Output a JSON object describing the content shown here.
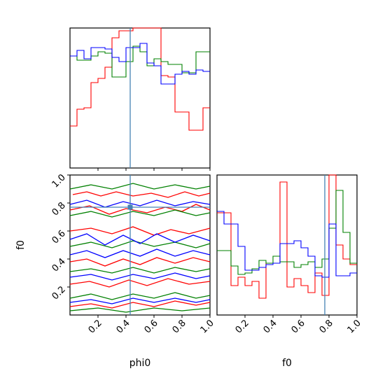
{
  "chart_data": {
    "type": "corner",
    "parameters": [
      "phi0",
      "f0"
    ],
    "truth": {
      "phi0": 0.43,
      "f0": 0.77
    },
    "truth_color": "#4682b4",
    "series": [
      {
        "color": "#ff0000"
      },
      {
        "color": "#008000"
      },
      {
        "color": "#0000ff"
      }
    ],
    "range": [
      0,
      1
    ],
    "ticks": {
      "values": [
        0.2,
        0.4,
        0.6,
        0.8,
        1.0
      ],
      "labels": [
        "0.2",
        "0.4",
        "0.6",
        "0.8",
        "1.0"
      ],
      "y_values": [
        0.2,
        0.4,
        0.6,
        0.8,
        1.0
      ],
      "y_labels": [
        "0.2",
        "0.4",
        "0.6",
        "0.8",
        "1.0"
      ]
    },
    "histograms": {
      "phi0": {
        "bins": 20,
        "ymax": 1.0,
        "series": [
          {
            "color": "#ff0000",
            "values": [
              0.3,
              0.42,
              0.43,
              0.61,
              0.64,
              0.72,
              0.93,
              0.98,
              0.98,
              1.05,
              1.02,
              1.07,
              1.09,
              0.66,
              0.65,
              0.4,
              0.4,
              0.27,
              0.27,
              0.43
            ]
          },
          {
            "color": "#008000",
            "values": [
              0.8,
              0.77,
              0.77,
              0.8,
              0.83,
              0.82,
              0.65,
              0.65,
              0.76,
              0.87,
              0.83,
              0.73,
              0.78,
              0.76,
              0.74,
              0.74,
              0.68,
              0.68,
              0.83,
              0.83
            ]
          },
          {
            "color": "#0000ff",
            "values": [
              0.8,
              0.84,
              0.78,
              0.86,
              0.86,
              0.85,
              0.79,
              0.76,
              0.86,
              0.86,
              0.89,
              0.75,
              0.73,
              0.6,
              0.6,
              0.67,
              0.69,
              0.67,
              0.7,
              0.69
            ]
          }
        ]
      },
      "f0": {
        "bins": 20,
        "ymax": 1.0,
        "series": [
          {
            "color": "#ff0000",
            "values": [
              0.73,
              0.73,
              0.21,
              0.27,
              0.21,
              0.24,
              0.12,
              0.37,
              0.37,
              0.95,
              0.2,
              0.26,
              0.21,
              0.16,
              0.3,
              0.14,
              1.04,
              0.5,
              0.4,
              0.36
            ]
          },
          {
            "color": "#008000",
            "values": [
              0.46,
              0.46,
              0.35,
              0.29,
              0.3,
              0.33,
              0.39,
              0.37,
              0.42,
              0.38,
              0.38,
              0.34,
              0.36,
              0.38,
              0.34,
              0.4,
              0.62,
              0.89,
              0.59,
              0.37
            ]
          },
          {
            "color": "#0000ff",
            "values": [
              0.74,
              0.65,
              0.65,
              0.49,
              0.32,
              0.32,
              0.34,
              0.36,
              0.37,
              0.51,
              0.51,
              0.53,
              0.48,
              0.42,
              0.28,
              0.27,
              0.65,
              0.28,
              0.28,
              0.3
            ]
          }
        ]
      }
    },
    "contours": [
      {
        "color": "#ff0000",
        "paths": [
          [
            [
              0.02,
              0.86
            ],
            [
              0.12,
              0.88
            ],
            [
              0.22,
              0.85
            ],
            [
              0.33,
              0.88
            ],
            [
              0.45,
              0.85
            ],
            [
              0.58,
              0.87
            ],
            [
              0.7,
              0.84
            ],
            [
              0.82,
              0.88
            ],
            [
              0.92,
              0.85
            ],
            [
              1.0,
              0.87
            ]
          ],
          [
            [
              0.0,
              0.75
            ],
            [
              0.14,
              0.78
            ],
            [
              0.28,
              0.72
            ],
            [
              0.4,
              0.76
            ],
            [
              0.55,
              0.73
            ],
            [
              0.68,
              0.77
            ],
            [
              0.8,
              0.74
            ],
            [
              0.9,
              0.79
            ],
            [
              1.0,
              0.75
            ]
          ],
          [
            [
              0.0,
              0.6
            ],
            [
              0.15,
              0.62
            ],
            [
              0.3,
              0.58
            ],
            [
              0.45,
              0.63
            ],
            [
              0.6,
              0.57
            ],
            [
              0.72,
              0.61
            ],
            [
              0.85,
              0.58
            ],
            [
              1.0,
              0.62
            ]
          ],
          [
            [
              0.0,
              0.38
            ],
            [
              0.12,
              0.4
            ],
            [
              0.25,
              0.35
            ],
            [
              0.38,
              0.4
            ],
            [
              0.5,
              0.36
            ],
            [
              0.62,
              0.41
            ],
            [
              0.75,
              0.37
            ],
            [
              0.88,
              0.41
            ],
            [
              1.0,
              0.38
            ]
          ],
          [
            [
              0.0,
              0.22
            ],
            [
              0.14,
              0.24
            ],
            [
              0.28,
              0.2
            ],
            [
              0.42,
              0.25
            ],
            [
              0.55,
              0.21
            ],
            [
              0.7,
              0.26
            ],
            [
              0.85,
              0.22
            ],
            [
              1.0,
              0.24
            ]
          ],
          [
            [
              0.0,
              0.06
            ],
            [
              0.15,
              0.08
            ],
            [
              0.3,
              0.05
            ],
            [
              0.45,
              0.09
            ],
            [
              0.6,
              0.06
            ],
            [
              0.75,
              0.1
            ],
            [
              0.9,
              0.07
            ],
            [
              1.0,
              0.09
            ]
          ]
        ]
      },
      {
        "color": "#008000",
        "paths": [
          [
            [
              0.0,
              0.9
            ],
            [
              0.15,
              0.93
            ],
            [
              0.3,
              0.9
            ],
            [
              0.45,
              0.94
            ],
            [
              0.6,
              0.9
            ],
            [
              0.75,
              0.93
            ],
            [
              0.9,
              0.9
            ],
            [
              1.0,
              0.92
            ]
          ],
          [
            [
              0.0,
              0.71
            ],
            [
              0.15,
              0.74
            ],
            [
              0.3,
              0.7
            ],
            [
              0.45,
              0.74
            ],
            [
              0.6,
              0.71
            ],
            [
              0.75,
              0.75
            ],
            [
              0.9,
              0.71
            ],
            [
              1.0,
              0.73
            ]
          ],
          [
            [
              0.0,
              0.49
            ],
            [
              0.15,
              0.52
            ],
            [
              0.3,
              0.48
            ],
            [
              0.45,
              0.53
            ],
            [
              0.6,
              0.49
            ],
            [
              0.75,
              0.52
            ],
            [
              0.9,
              0.48
            ],
            [
              1.0,
              0.51
            ]
          ],
          [
            [
              0.0,
              0.31
            ],
            [
              0.15,
              0.33
            ],
            [
              0.3,
              0.3
            ],
            [
              0.45,
              0.34
            ],
            [
              0.6,
              0.3
            ],
            [
              0.75,
              0.34
            ],
            [
              0.9,
              0.31
            ],
            [
              1.0,
              0.33
            ]
          ],
          [
            [
              0.0,
              0.12
            ],
            [
              0.15,
              0.15
            ],
            [
              0.3,
              0.11
            ],
            [
              0.45,
              0.15
            ],
            [
              0.6,
              0.12
            ],
            [
              0.75,
              0.16
            ],
            [
              0.9,
              0.12
            ],
            [
              1.0,
              0.14
            ]
          ],
          [
            [
              0.0,
              0.03
            ],
            [
              0.2,
              0.05
            ],
            [
              0.4,
              0.02
            ],
            [
              0.6,
              0.05
            ],
            [
              0.8,
              0.03
            ],
            [
              1.0,
              0.05
            ]
          ]
        ]
      },
      {
        "color": "#0000ff",
        "paths": [
          [
            [
              0.0,
              0.79
            ],
            [
              0.12,
              0.82
            ],
            [
              0.25,
              0.77
            ],
            [
              0.38,
              0.81
            ],
            [
              0.5,
              0.78
            ],
            [
              0.62,
              0.82
            ],
            [
              0.75,
              0.78
            ],
            [
              0.88,
              0.81
            ],
            [
              1.0,
              0.79
            ]
          ],
          [
            [
              0.0,
              0.54
            ],
            [
              0.12,
              0.58
            ],
            [
              0.25,
              0.5
            ],
            [
              0.38,
              0.57
            ],
            [
              0.5,
              0.51
            ],
            [
              0.62,
              0.58
            ],
            [
              0.75,
              0.52
            ],
            [
              0.88,
              0.57
            ],
            [
              1.0,
              0.53
            ]
          ],
          [
            [
              0.0,
              0.43
            ],
            [
              0.12,
              0.46
            ],
            [
              0.25,
              0.41
            ],
            [
              0.38,
              0.46
            ],
            [
              0.5,
              0.42
            ],
            [
              0.62,
              0.47
            ],
            [
              0.75,
              0.42
            ],
            [
              0.88,
              0.46
            ],
            [
              1.0,
              0.43
            ]
          ],
          [
            [
              0.0,
              0.27
            ],
            [
              0.15,
              0.29
            ],
            [
              0.3,
              0.25
            ],
            [
              0.45,
              0.29
            ],
            [
              0.6,
              0.26
            ],
            [
              0.75,
              0.3
            ],
            [
              0.9,
              0.26
            ],
            [
              1.0,
              0.28
            ]
          ],
          [
            [
              0.0,
              0.09
            ],
            [
              0.15,
              0.11
            ],
            [
              0.3,
              0.08
            ],
            [
              0.45,
              0.12
            ],
            [
              0.6,
              0.09
            ],
            [
              0.75,
              0.12
            ],
            [
              0.9,
              0.09
            ],
            [
              1.0,
              0.11
            ]
          ]
        ]
      }
    ]
  }
}
